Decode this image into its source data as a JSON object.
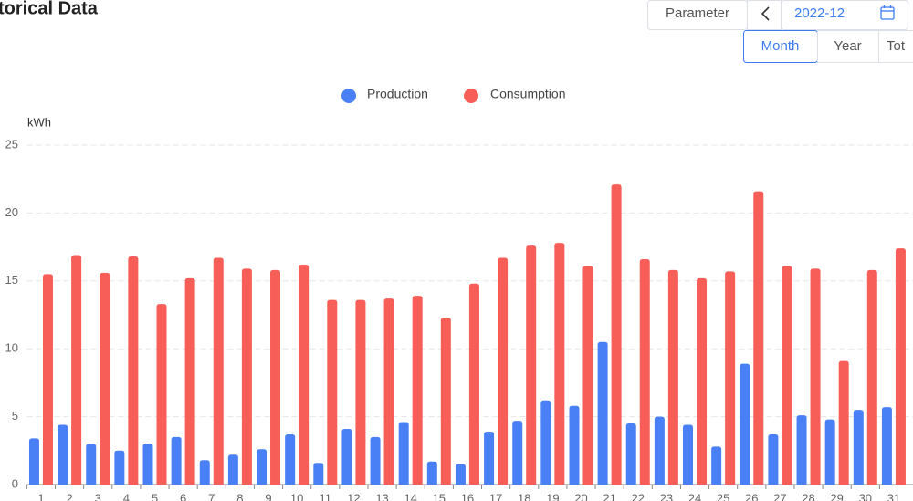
{
  "header": {
    "title": "torical Data",
    "parameter": "Parameter",
    "date": "2022-12",
    "tabs": [
      "Month",
      "Year",
      "Tot"
    ]
  },
  "chart_data": {
    "type": "bar",
    "y_label": "kWh",
    "categories": [
      "1",
      "2",
      "3",
      "4",
      "5",
      "6",
      "7",
      "8",
      "9",
      "10",
      "11",
      "12",
      "13",
      "14",
      "15",
      "16",
      "17",
      "18",
      "19",
      "20",
      "21",
      "22",
      "23",
      "24",
      "25",
      "26",
      "27",
      "28",
      "29",
      "30",
      "31"
    ],
    "series": [
      {
        "name": "Production",
        "color": "#4a80f5",
        "values": [
          3.4,
          4.4,
          3.0,
          2.5,
          3.0,
          3.5,
          1.8,
          2.2,
          2.6,
          3.7,
          1.6,
          4.1,
          3.5,
          4.6,
          1.7,
          1.5,
          3.9,
          4.7,
          6.2,
          5.8,
          10.5,
          4.5,
          5.0,
          4.4,
          2.8,
          8.9,
          3.7,
          5.1,
          4.8,
          5.5,
          5.7
        ]
      },
      {
        "name": "Consumption",
        "color": "#f65e57",
        "values": [
          15.5,
          16.9,
          15.6,
          16.8,
          13.3,
          15.2,
          16.7,
          15.9,
          15.8,
          16.2,
          13.6,
          13.6,
          13.7,
          13.9,
          12.3,
          14.8,
          16.7,
          17.6,
          17.8,
          16.1,
          22.1,
          16.6,
          15.8,
          15.2,
          15.7,
          21.6,
          16.1,
          15.9,
          9.1,
          15.8,
          17.4
        ]
      }
    ],
    "ylim": [
      0,
      25
    ],
    "yticks": [
      0,
      5,
      10,
      15,
      20,
      25
    ],
    "grid": true,
    "legend": "top"
  }
}
